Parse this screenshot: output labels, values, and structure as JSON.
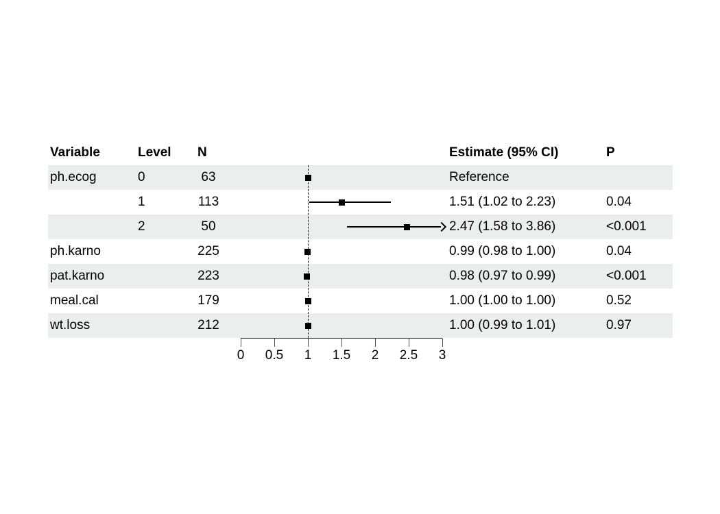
{
  "colors": {
    "band": "#eaeeec",
    "marker": "#000000",
    "axis": "#1a1a1a",
    "tick": "#4d4d4d",
    "text": "#000000",
    "background": "#ffffff"
  },
  "chart_data": {
    "type": "forest",
    "title": "",
    "columns": {
      "variable": "Variable",
      "level": "Level",
      "n": "N",
      "estimate": "Estimate (95% CI)",
      "p": "P"
    },
    "x_axis": {
      "range": [
        0,
        3
      ],
      "ticks": [
        0,
        0.5,
        1,
        1.5,
        2,
        2.5,
        3
      ],
      "tick_labels": [
        "0",
        "0.5",
        "1",
        "1.5",
        "2",
        "2.5",
        "3"
      ],
      "reference_line": 1
    },
    "rows": [
      {
        "variable": "ph.ecog",
        "level": "0",
        "n": "63",
        "estimate": 1.0,
        "ci_low": null,
        "ci_high": null,
        "estimate_label": "Reference",
        "p": "",
        "reference": true,
        "arrow": false
      },
      {
        "variable": "",
        "level": "1",
        "n": "113",
        "estimate": 1.51,
        "ci_low": 1.02,
        "ci_high": 2.23,
        "estimate_label": "1.51 (1.02 to 2.23)",
        "p": "0.04",
        "reference": false,
        "arrow": false
      },
      {
        "variable": "",
        "level": "2",
        "n": "50",
        "estimate": 2.47,
        "ci_low": 1.58,
        "ci_high": 3.86,
        "estimate_label": "2.47 (1.58 to 3.86)",
        "p": "<0.001",
        "reference": false,
        "arrow": true
      },
      {
        "variable": "ph.karno",
        "level": "",
        "n": "225",
        "estimate": 0.99,
        "ci_low": 0.98,
        "ci_high": 1.0,
        "estimate_label": "0.99 (0.98 to 1.00)",
        "p": "0.04",
        "reference": false,
        "arrow": false
      },
      {
        "variable": "pat.karno",
        "level": "",
        "n": "223",
        "estimate": 0.98,
        "ci_low": 0.97,
        "ci_high": 0.99,
        "estimate_label": "0.98 (0.97 to 0.99)",
        "p": "<0.001",
        "reference": false,
        "arrow": false
      },
      {
        "variable": "meal.cal",
        "level": "",
        "n": "179",
        "estimate": 1.0,
        "ci_low": 1.0,
        "ci_high": 1.0,
        "estimate_label": "1.00 (1.00 to 1.00)",
        "p": "0.52",
        "reference": false,
        "arrow": false
      },
      {
        "variable": "wt.loss",
        "level": "",
        "n": "212",
        "estimate": 1.0,
        "ci_low": 0.99,
        "ci_high": 1.01,
        "estimate_label": "1.00 (0.99 to 1.01)",
        "p": "0.97",
        "reference": false,
        "arrow": false
      }
    ]
  }
}
